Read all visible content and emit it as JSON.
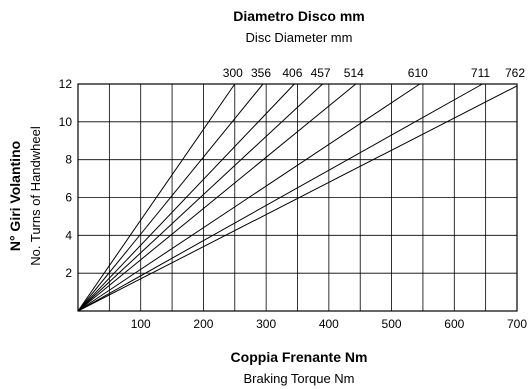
{
  "chart_data": {
    "type": "line",
    "title": "Diametro Disco  mm",
    "subtitle": "Disc Diameter  mm",
    "xlabel": "Coppia Frenante  Nm",
    "xlabel_sub": "Braking Torque  Nm",
    "ylabel": "N° Giri Volantino",
    "ylabel_sub": "No. Turns of Handwheel",
    "xlim": [
      0,
      700
    ],
    "ylim": [
      0,
      12
    ],
    "x_ticks": [
      100,
      200,
      300,
      400,
      500,
      600,
      700
    ],
    "y_ticks": [
      2,
      4,
      6,
      8,
      10,
      12
    ],
    "x_grid_step": 50,
    "y_grid_step": 2,
    "grid": true,
    "series": [
      {
        "name": "300",
        "x": [
          0,
          250
        ],
        "y": [
          0,
          12
        ]
      },
      {
        "name": "356",
        "x": [
          0,
          295
        ],
        "y": [
          0,
          12
        ]
      },
      {
        "name": "406",
        "x": [
          0,
          345
        ],
        "y": [
          0,
          12
        ]
      },
      {
        "name": "457",
        "x": [
          0,
          390
        ],
        "y": [
          0,
          12
        ]
      },
      {
        "name": "514",
        "x": [
          0,
          443
        ],
        "y": [
          0,
          12
        ]
      },
      {
        "name": "610",
        "x": [
          0,
          545
        ],
        "y": [
          0,
          12
        ]
      },
      {
        "name": "711",
        "x": [
          0,
          645
        ],
        "y": [
          0,
          12
        ]
      },
      {
        "name": "762",
        "x": [
          0,
          700
        ],
        "y": [
          0,
          11.9
        ]
      }
    ]
  }
}
